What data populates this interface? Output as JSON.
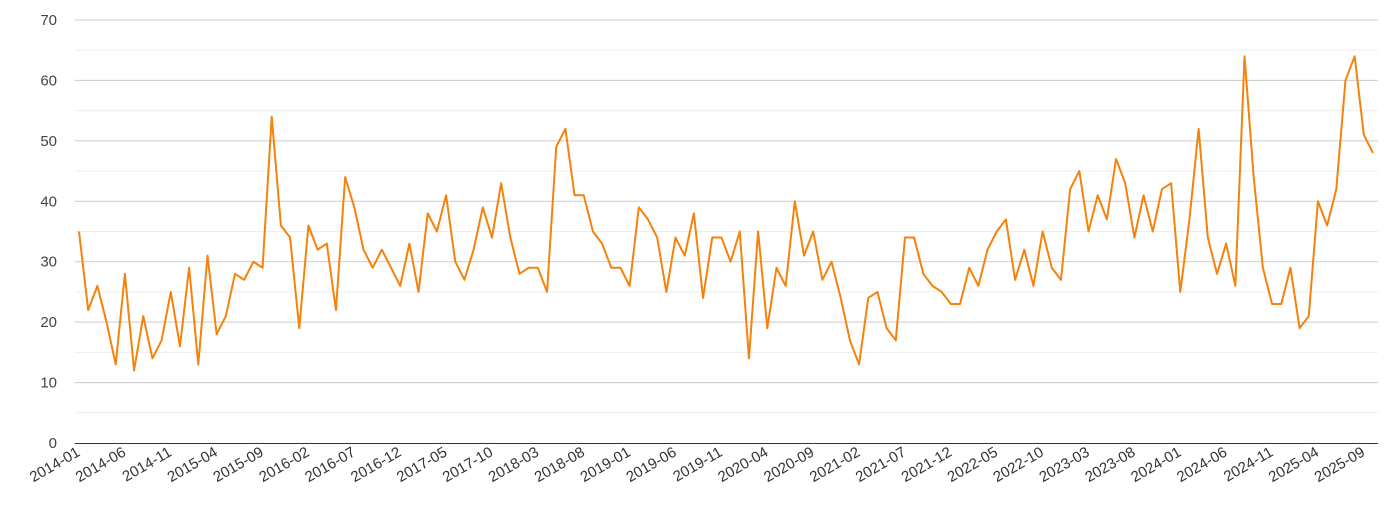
{
  "chart_data": {
    "type": "line",
    "title": "",
    "xlabel": "",
    "ylabel": "",
    "ylim": [
      0,
      70
    ],
    "yticks": [
      0,
      10,
      20,
      30,
      40,
      50,
      60,
      70
    ],
    "grid": true,
    "legend": "none",
    "colors": {
      "line": "#f5820b",
      "grid_major": "#cccccc",
      "grid_minor": "#eeeeee",
      "axis": "#333333"
    },
    "xtick_labels": [
      "2014-01",
      "2014-06",
      "2014-11",
      "2015-04",
      "2015-09",
      "2016-02",
      "2016-07",
      "2016-12",
      "2017-05",
      "2017-10",
      "2018-03",
      "2018-08",
      "2019-01",
      "2019-06",
      "2019-11",
      "2020-04",
      "2020-09",
      "2021-02",
      "2021-07",
      "2021-12",
      "2022-05",
      "2022-10",
      "2023-03",
      "2023-08",
      "2024-01",
      "2024-06",
      "2024-11",
      "2025-04",
      "2025-09"
    ],
    "start_month": "2014-01",
    "series": [
      {
        "values": [
          35,
          22,
          26,
          20,
          13,
          28,
          12,
          21,
          14,
          17,
          25,
          16,
          29,
          13,
          31,
          18,
          21,
          28,
          27,
          30,
          29,
          54,
          36,
          34,
          19,
          36,
          32,
          33,
          22,
          44,
          39,
          32,
          29,
          32,
          29,
          26,
          33,
          25,
          38,
          35,
          41,
          30,
          27,
          32,
          39,
          34,
          43,
          34,
          28,
          29,
          29,
          25,
          49,
          52,
          41,
          41,
          35,
          33,
          29,
          29,
          26,
          39,
          37,
          34,
          25,
          34,
          31,
          38,
          24,
          34,
          34,
          30,
          35,
          14,
          35,
          19,
          29,
          26,
          40,
          31,
          35,
          27,
          30,
          24,
          17,
          13,
          24,
          25,
          19,
          17,
          34,
          34,
          28,
          26,
          25,
          23,
          23,
          29,
          26,
          32,
          35,
          37,
          27,
          32,
          26,
          35,
          29,
          27,
          42,
          45,
          35,
          41,
          37,
          47,
          43,
          34,
          41,
          35,
          42,
          43,
          25,
          37,
          52,
          34,
          28,
          33,
          26,
          64,
          44,
          29,
          23,
          23,
          29,
          19,
          21,
          40,
          36,
          42,
          60,
          64,
          51,
          48
        ]
      }
    ]
  }
}
